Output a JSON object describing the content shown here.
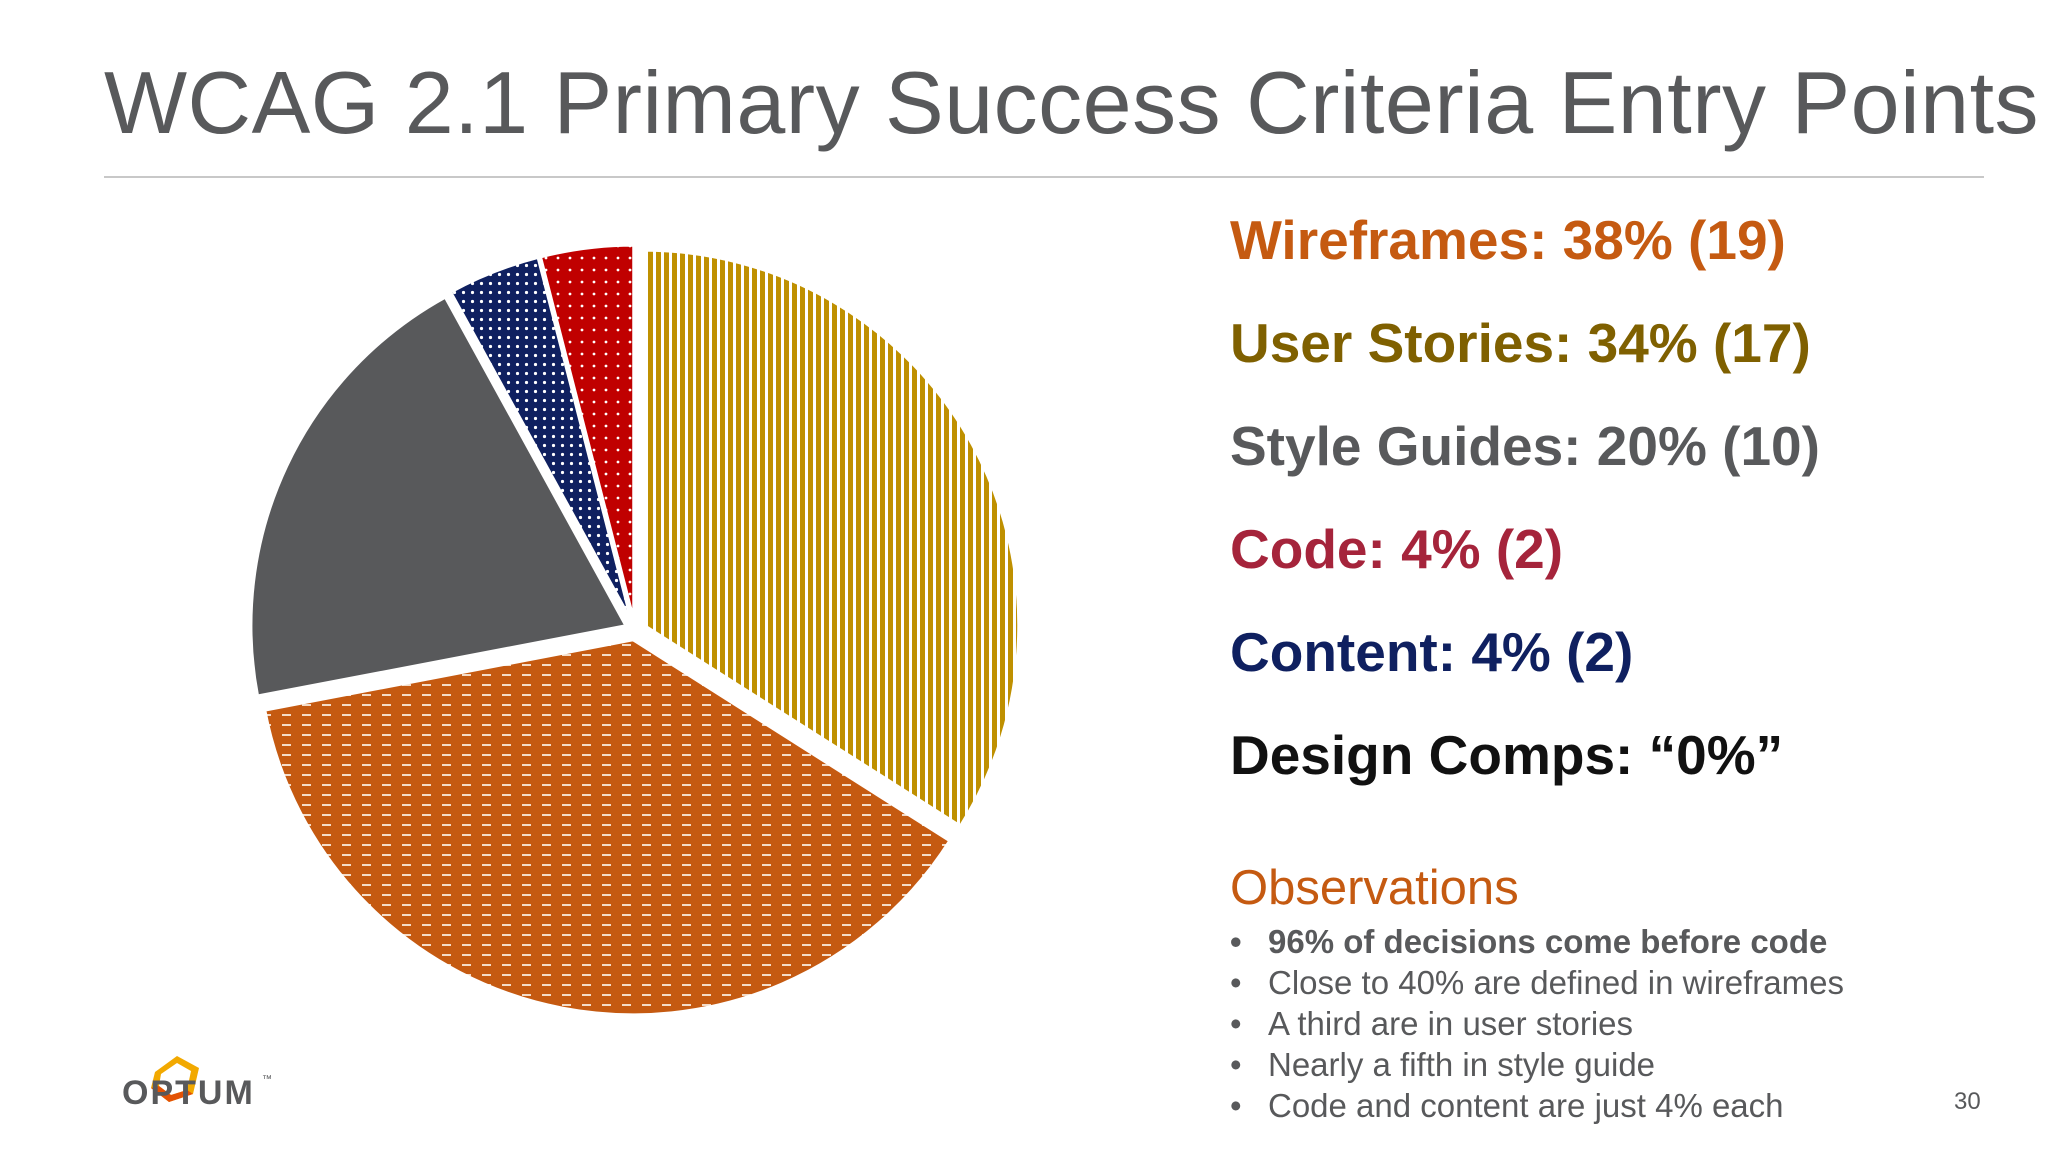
{
  "slide": {
    "title": "WCAG 2.1 Primary Success Criteria Entry Points",
    "page_number": "30"
  },
  "legend": [
    {
      "text": "Wireframes: 38% (19)",
      "color": "#c55a11"
    },
    {
      "text": "User Stories: 34% (17)",
      "color": "#7f6000"
    },
    {
      "text": "Style Guides: 20% (10)",
      "color": "#58595b"
    },
    {
      "text": "Code: 4% (2)",
      "color": "#a5243b"
    },
    {
      "text": "Content: 4% (2)",
      "color": "#0f2060"
    },
    {
      "text": "Design Comps: “0%”",
      "color": "#111111"
    }
  ],
  "observations": {
    "heading": "Observations",
    "bullet": "•",
    "items": [
      "96% of decisions come before code",
      "Close to 40% are defined in wireframes",
      "A third are in user stories",
      "Nearly a fifth in style guide",
      "Code and content are just 4% each"
    ]
  },
  "logo": {
    "text": "OPTUM",
    "tm": "™"
  },
  "chart_data": {
    "type": "pie",
    "title": "",
    "slices": [
      {
        "label": "User Stories",
        "value": 17,
        "percent": 34,
        "color": "#bf9000",
        "pattern": "vertical-lines"
      },
      {
        "label": "Wireframes",
        "value": 19,
        "percent": 38,
        "color": "#c55a11",
        "pattern": "dashes"
      },
      {
        "label": "Style Guides",
        "value": 10,
        "percent": 20,
        "color": "#58595b",
        "pattern": "solid"
      },
      {
        "label": "Content",
        "value": 2,
        "percent": 4,
        "color": "#0f2060",
        "pattern": "dots"
      },
      {
        "label": "Code",
        "value": 2,
        "percent": 4,
        "color": "#c00000",
        "pattern": "dots"
      }
    ],
    "exploded": true
  }
}
